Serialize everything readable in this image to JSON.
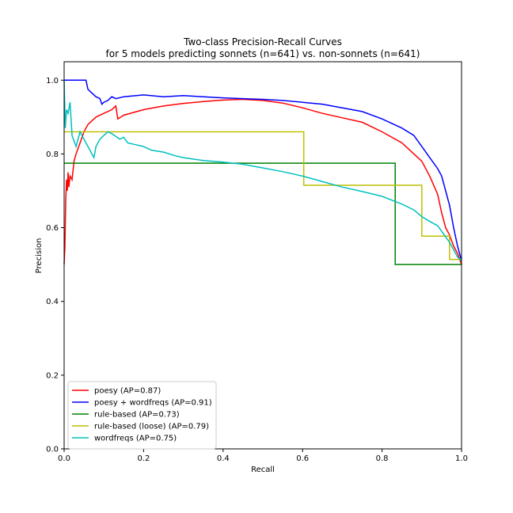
{
  "chart_data": {
    "type": "line",
    "title": "Two-class Precision-Recall Curves",
    "subtitle": "for 5 models predicting sonnets (n=641) vs. non-sonnets (n=641)",
    "xlabel": "Recall",
    "ylabel": "Precision",
    "xlim": [
      0,
      1
    ],
    "ylim": [
      0,
      1.05
    ],
    "x_ticks": [
      "0.0",
      "0.2",
      "0.4",
      "0.6",
      "0.8",
      "1.0"
    ],
    "y_ticks": [
      "0.0",
      "0.2",
      "0.4",
      "0.6",
      "0.8",
      "1.0"
    ],
    "legend_position": "lower-left",
    "grid": false,
    "series": [
      {
        "name": "poesy (AP=0.87)",
        "color": "#ff0000",
        "step": false,
        "points": [
          [
            0,
            0.5
          ],
          [
            0.002,
            0.55
          ],
          [
            0.004,
            0.67
          ],
          [
            0.006,
            0.73
          ],
          [
            0.008,
            0.7
          ],
          [
            0.01,
            0.75
          ],
          [
            0.012,
            0.71
          ],
          [
            0.015,
            0.74
          ],
          [
            0.02,
            0.73
          ],
          [
            0.025,
            0.78
          ],
          [
            0.03,
            0.8
          ],
          [
            0.04,
            0.83
          ],
          [
            0.05,
            0.86
          ],
          [
            0.06,
            0.88
          ],
          [
            0.08,
            0.9
          ],
          [
            0.1,
            0.91
          ],
          [
            0.12,
            0.92
          ],
          [
            0.13,
            0.93
          ],
          [
            0.135,
            0.895
          ],
          [
            0.15,
            0.905
          ],
          [
            0.2,
            0.92
          ],
          [
            0.25,
            0.93
          ],
          [
            0.3,
            0.937
          ],
          [
            0.35,
            0.942
          ],
          [
            0.4,
            0.946
          ],
          [
            0.45,
            0.948
          ],
          [
            0.5,
            0.945
          ],
          [
            0.55,
            0.938
          ],
          [
            0.6,
            0.925
          ],
          [
            0.65,
            0.91
          ],
          [
            0.7,
            0.898
          ],
          [
            0.75,
            0.886
          ],
          [
            0.8,
            0.86
          ],
          [
            0.85,
            0.83
          ],
          [
            0.88,
            0.8
          ],
          [
            0.9,
            0.78
          ],
          [
            0.92,
            0.74
          ],
          [
            0.94,
            0.69
          ],
          [
            0.95,
            0.64
          ],
          [
            0.96,
            0.6
          ],
          [
            0.97,
            0.58
          ],
          [
            0.98,
            0.55
          ],
          [
            0.99,
            0.53
          ],
          [
            1.0,
            0.5
          ]
        ]
      },
      {
        "name": "poesy + wordfreqs (AP=0.91)",
        "color": "#0000ff",
        "step": false,
        "points": [
          [
            0,
            1.0
          ],
          [
            0.055,
            1.0
          ],
          [
            0.06,
            0.975
          ],
          [
            0.07,
            0.965
          ],
          [
            0.08,
            0.955
          ],
          [
            0.09,
            0.95
          ],
          [
            0.095,
            0.935
          ],
          [
            0.1,
            0.94
          ],
          [
            0.11,
            0.945
          ],
          [
            0.12,
            0.955
          ],
          [
            0.13,
            0.95
          ],
          [
            0.15,
            0.955
          ],
          [
            0.2,
            0.96
          ],
          [
            0.25,
            0.955
          ],
          [
            0.3,
            0.958
          ],
          [
            0.35,
            0.955
          ],
          [
            0.4,
            0.952
          ],
          [
            0.45,
            0.95
          ],
          [
            0.5,
            0.948
          ],
          [
            0.55,
            0.945
          ],
          [
            0.6,
            0.94
          ],
          [
            0.65,
            0.935
          ],
          [
            0.7,
            0.925
          ],
          [
            0.75,
            0.915
          ],
          [
            0.8,
            0.895
          ],
          [
            0.85,
            0.87
          ],
          [
            0.88,
            0.85
          ],
          [
            0.9,
            0.82
          ],
          [
            0.92,
            0.79
          ],
          [
            0.94,
            0.76
          ],
          [
            0.95,
            0.74
          ],
          [
            0.96,
            0.7
          ],
          [
            0.97,
            0.66
          ],
          [
            0.98,
            0.6
          ],
          [
            0.99,
            0.55
          ],
          [
            1.0,
            0.51
          ]
        ]
      },
      {
        "name": "rule-based (AP=0.73)",
        "color": "#008000",
        "step": true,
        "points": [
          [
            0,
            0.775
          ],
          [
            0.833,
            0.775
          ],
          [
            0.833,
            0.5
          ],
          [
            1.0,
            0.5
          ]
        ]
      },
      {
        "name": "rule-based (loose) (AP=0.79)",
        "color": "#bfbf00",
        "step": true,
        "points": [
          [
            0,
            0.86
          ],
          [
            0.603,
            0.86
          ],
          [
            0.603,
            0.715
          ],
          [
            0.9,
            0.715
          ],
          [
            0.9,
            0.577
          ],
          [
            0.97,
            0.577
          ],
          [
            0.97,
            0.514
          ],
          [
            1.0,
            0.514
          ]
        ]
      },
      {
        "name": "wordfreqs (AP=0.75)",
        "color": "#00bfbf",
        "step": false,
        "points": [
          [
            0,
            1.0
          ],
          [
            0.003,
            0.87
          ],
          [
            0.006,
            0.92
          ],
          [
            0.01,
            0.91
          ],
          [
            0.015,
            0.94
          ],
          [
            0.02,
            0.85
          ],
          [
            0.03,
            0.82
          ],
          [
            0.04,
            0.86
          ],
          [
            0.05,
            0.84
          ],
          [
            0.06,
            0.82
          ],
          [
            0.07,
            0.8
          ],
          [
            0.075,
            0.79
          ],
          [
            0.08,
            0.82
          ],
          [
            0.09,
            0.84
          ],
          [
            0.1,
            0.85
          ],
          [
            0.11,
            0.86
          ],
          [
            0.12,
            0.855
          ],
          [
            0.14,
            0.84
          ],
          [
            0.15,
            0.845
          ],
          [
            0.16,
            0.83
          ],
          [
            0.18,
            0.825
          ],
          [
            0.2,
            0.82
          ],
          [
            0.22,
            0.81
          ],
          [
            0.25,
            0.805
          ],
          [
            0.28,
            0.795
          ],
          [
            0.3,
            0.79
          ],
          [
            0.35,
            0.782
          ],
          [
            0.4,
            0.778
          ],
          [
            0.45,
            0.772
          ],
          [
            0.5,
            0.762
          ],
          [
            0.55,
            0.752
          ],
          [
            0.6,
            0.74
          ],
          [
            0.65,
            0.725
          ],
          [
            0.7,
            0.71
          ],
          [
            0.75,
            0.698
          ],
          [
            0.8,
            0.685
          ],
          [
            0.85,
            0.664
          ],
          [
            0.88,
            0.648
          ],
          [
            0.9,
            0.63
          ],
          [
            0.92,
            0.617
          ],
          [
            0.94,
            0.605
          ],
          [
            0.95,
            0.59
          ],
          [
            0.96,
            0.575
          ],
          [
            0.97,
            0.56
          ],
          [
            0.98,
            0.54
          ],
          [
            0.99,
            0.52
          ],
          [
            1.0,
            0.51
          ]
        ]
      }
    ]
  }
}
